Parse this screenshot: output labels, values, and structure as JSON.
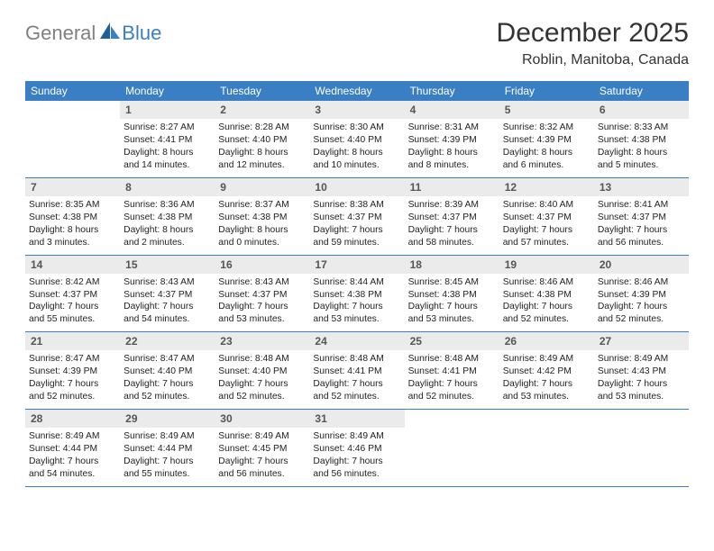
{
  "logo": {
    "text_gray": "General",
    "text_blue": "Blue"
  },
  "title": "December 2025",
  "location": "Roblin, Manitoba, Canada",
  "colors": {
    "header_bg": "#3a7fc4",
    "header_text": "#ffffff",
    "daynum_bg": "#ebebeb",
    "daynum_text": "#555555",
    "body_text": "#222222",
    "week_border": "#3a7fc4",
    "logo_gray": "#808080",
    "logo_blue": "#3a7fc4"
  },
  "weekdays": [
    "Sunday",
    "Monday",
    "Tuesday",
    "Wednesday",
    "Thursday",
    "Friday",
    "Saturday"
  ],
  "weeks": [
    [
      {
        "n": "",
        "sr": "",
        "ss": "",
        "d1": "",
        "d2": ""
      },
      {
        "n": "1",
        "sr": "Sunrise: 8:27 AM",
        "ss": "Sunset: 4:41 PM",
        "d1": "Daylight: 8 hours",
        "d2": "and 14 minutes."
      },
      {
        "n": "2",
        "sr": "Sunrise: 8:28 AM",
        "ss": "Sunset: 4:40 PM",
        "d1": "Daylight: 8 hours",
        "d2": "and 12 minutes."
      },
      {
        "n": "3",
        "sr": "Sunrise: 8:30 AM",
        "ss": "Sunset: 4:40 PM",
        "d1": "Daylight: 8 hours",
        "d2": "and 10 minutes."
      },
      {
        "n": "4",
        "sr": "Sunrise: 8:31 AM",
        "ss": "Sunset: 4:39 PM",
        "d1": "Daylight: 8 hours",
        "d2": "and 8 minutes."
      },
      {
        "n": "5",
        "sr": "Sunrise: 8:32 AM",
        "ss": "Sunset: 4:39 PM",
        "d1": "Daylight: 8 hours",
        "d2": "and 6 minutes."
      },
      {
        "n": "6",
        "sr": "Sunrise: 8:33 AM",
        "ss": "Sunset: 4:38 PM",
        "d1": "Daylight: 8 hours",
        "d2": "and 5 minutes."
      }
    ],
    [
      {
        "n": "7",
        "sr": "Sunrise: 8:35 AM",
        "ss": "Sunset: 4:38 PM",
        "d1": "Daylight: 8 hours",
        "d2": "and 3 minutes."
      },
      {
        "n": "8",
        "sr": "Sunrise: 8:36 AM",
        "ss": "Sunset: 4:38 PM",
        "d1": "Daylight: 8 hours",
        "d2": "and 2 minutes."
      },
      {
        "n": "9",
        "sr": "Sunrise: 8:37 AM",
        "ss": "Sunset: 4:38 PM",
        "d1": "Daylight: 8 hours",
        "d2": "and 0 minutes."
      },
      {
        "n": "10",
        "sr": "Sunrise: 8:38 AM",
        "ss": "Sunset: 4:37 PM",
        "d1": "Daylight: 7 hours",
        "d2": "and 59 minutes."
      },
      {
        "n": "11",
        "sr": "Sunrise: 8:39 AM",
        "ss": "Sunset: 4:37 PM",
        "d1": "Daylight: 7 hours",
        "d2": "and 58 minutes."
      },
      {
        "n": "12",
        "sr": "Sunrise: 8:40 AM",
        "ss": "Sunset: 4:37 PM",
        "d1": "Daylight: 7 hours",
        "d2": "and 57 minutes."
      },
      {
        "n": "13",
        "sr": "Sunrise: 8:41 AM",
        "ss": "Sunset: 4:37 PM",
        "d1": "Daylight: 7 hours",
        "d2": "and 56 minutes."
      }
    ],
    [
      {
        "n": "14",
        "sr": "Sunrise: 8:42 AM",
        "ss": "Sunset: 4:37 PM",
        "d1": "Daylight: 7 hours",
        "d2": "and 55 minutes."
      },
      {
        "n": "15",
        "sr": "Sunrise: 8:43 AM",
        "ss": "Sunset: 4:37 PM",
        "d1": "Daylight: 7 hours",
        "d2": "and 54 minutes."
      },
      {
        "n": "16",
        "sr": "Sunrise: 8:43 AM",
        "ss": "Sunset: 4:37 PM",
        "d1": "Daylight: 7 hours",
        "d2": "and 53 minutes."
      },
      {
        "n": "17",
        "sr": "Sunrise: 8:44 AM",
        "ss": "Sunset: 4:38 PM",
        "d1": "Daylight: 7 hours",
        "d2": "and 53 minutes."
      },
      {
        "n": "18",
        "sr": "Sunrise: 8:45 AM",
        "ss": "Sunset: 4:38 PM",
        "d1": "Daylight: 7 hours",
        "d2": "and 53 minutes."
      },
      {
        "n": "19",
        "sr": "Sunrise: 8:46 AM",
        "ss": "Sunset: 4:38 PM",
        "d1": "Daylight: 7 hours",
        "d2": "and 52 minutes."
      },
      {
        "n": "20",
        "sr": "Sunrise: 8:46 AM",
        "ss": "Sunset: 4:39 PM",
        "d1": "Daylight: 7 hours",
        "d2": "and 52 minutes."
      }
    ],
    [
      {
        "n": "21",
        "sr": "Sunrise: 8:47 AM",
        "ss": "Sunset: 4:39 PM",
        "d1": "Daylight: 7 hours",
        "d2": "and 52 minutes."
      },
      {
        "n": "22",
        "sr": "Sunrise: 8:47 AM",
        "ss": "Sunset: 4:40 PM",
        "d1": "Daylight: 7 hours",
        "d2": "and 52 minutes."
      },
      {
        "n": "23",
        "sr": "Sunrise: 8:48 AM",
        "ss": "Sunset: 4:40 PM",
        "d1": "Daylight: 7 hours",
        "d2": "and 52 minutes."
      },
      {
        "n": "24",
        "sr": "Sunrise: 8:48 AM",
        "ss": "Sunset: 4:41 PM",
        "d1": "Daylight: 7 hours",
        "d2": "and 52 minutes."
      },
      {
        "n": "25",
        "sr": "Sunrise: 8:48 AM",
        "ss": "Sunset: 4:41 PM",
        "d1": "Daylight: 7 hours",
        "d2": "and 52 minutes."
      },
      {
        "n": "26",
        "sr": "Sunrise: 8:49 AM",
        "ss": "Sunset: 4:42 PM",
        "d1": "Daylight: 7 hours",
        "d2": "and 53 minutes."
      },
      {
        "n": "27",
        "sr": "Sunrise: 8:49 AM",
        "ss": "Sunset: 4:43 PM",
        "d1": "Daylight: 7 hours",
        "d2": "and 53 minutes."
      }
    ],
    [
      {
        "n": "28",
        "sr": "Sunrise: 8:49 AM",
        "ss": "Sunset: 4:44 PM",
        "d1": "Daylight: 7 hours",
        "d2": "and 54 minutes."
      },
      {
        "n": "29",
        "sr": "Sunrise: 8:49 AM",
        "ss": "Sunset: 4:44 PM",
        "d1": "Daylight: 7 hours",
        "d2": "and 55 minutes."
      },
      {
        "n": "30",
        "sr": "Sunrise: 8:49 AM",
        "ss": "Sunset: 4:45 PM",
        "d1": "Daylight: 7 hours",
        "d2": "and 56 minutes."
      },
      {
        "n": "31",
        "sr": "Sunrise: 8:49 AM",
        "ss": "Sunset: 4:46 PM",
        "d1": "Daylight: 7 hours",
        "d2": "and 56 minutes."
      },
      {
        "n": "",
        "sr": "",
        "ss": "",
        "d1": "",
        "d2": ""
      },
      {
        "n": "",
        "sr": "",
        "ss": "",
        "d1": "",
        "d2": ""
      },
      {
        "n": "",
        "sr": "",
        "ss": "",
        "d1": "",
        "d2": ""
      }
    ]
  ]
}
